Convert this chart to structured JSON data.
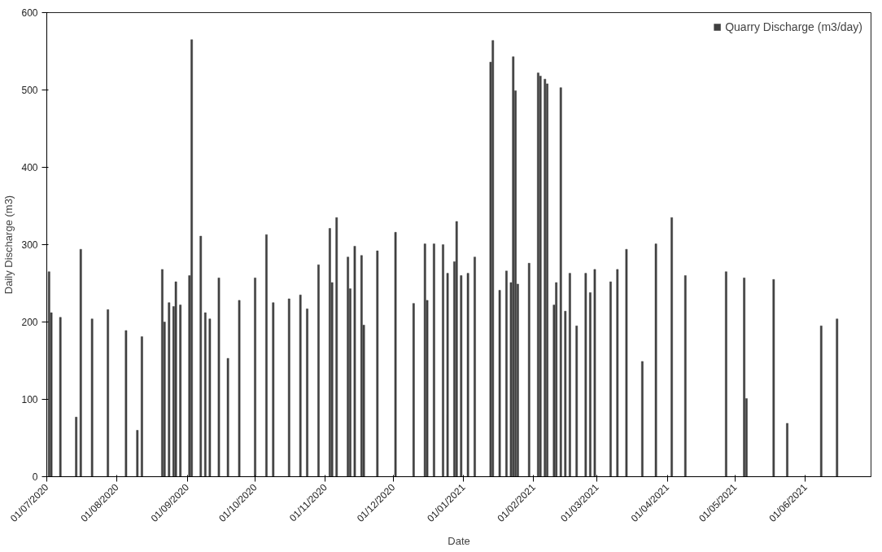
{
  "chart_data": {
    "type": "bar",
    "xlabel": "Date",
    "ylabel": "Daily Discharge (m3)",
    "x": [
      "2020-07-02",
      "2020-07-03",
      "2020-07-07",
      "2020-07-14",
      "2020-07-16",
      "2020-07-21",
      "2020-07-28",
      "2020-08-05",
      "2020-08-10",
      "2020-08-12",
      "2020-08-21",
      "2020-08-22",
      "2020-08-24",
      "2020-08-26",
      "2020-08-27",
      "2020-08-29",
      "2020-09-02",
      "2020-09-03",
      "2020-09-07",
      "2020-09-09",
      "2020-09-11",
      "2020-09-15",
      "2020-09-19",
      "2020-09-24",
      "2020-10-01",
      "2020-10-06",
      "2020-10-09",
      "2020-10-16",
      "2020-10-21",
      "2020-10-24",
      "2020-10-29",
      "2020-11-03",
      "2020-11-04",
      "2020-11-06",
      "2020-11-11",
      "2020-11-12",
      "2020-11-14",
      "2020-11-17",
      "2020-11-18",
      "2020-11-24",
      "2020-12-02",
      "2020-12-10",
      "2020-12-15",
      "2020-12-16",
      "2020-12-19",
      "2020-12-23",
      "2020-12-25",
      "2020-12-28",
      "2020-12-29",
      "2020-12-31",
      "2021-01-03",
      "2021-01-06",
      "2021-01-13",
      "2021-01-14",
      "2021-01-17",
      "2021-01-20",
      "2021-01-22",
      "2021-01-23",
      "2021-01-24",
      "2021-01-25",
      "2021-01-30",
      "2021-02-03",
      "2021-02-04",
      "2021-02-06",
      "2021-02-07",
      "2021-02-10",
      "2021-02-11",
      "2021-02-13",
      "2021-02-15",
      "2021-02-17",
      "2021-02-20",
      "2021-02-24",
      "2021-02-26",
      "2021-02-28",
      "2021-03-07",
      "2021-03-10",
      "2021-03-14",
      "2021-03-21",
      "2021-03-27",
      "2021-04-03",
      "2021-04-09",
      "2021-04-27",
      "2021-05-05",
      "2021-05-06",
      "2021-05-18",
      "2021-05-24",
      "2021-06-08",
      "2021-06-15"
    ],
    "series": [
      {
        "name": "Quarry Discharge (m3/day)",
        "color": "#404040",
        "values": [
          265,
          212,
          206,
          77,
          294,
          204,
          216,
          189,
          60,
          181,
          268,
          200,
          225,
          220,
          252,
          222,
          260,
          565,
          311,
          212,
          204,
          257,
          153,
          228,
          257,
          313,
          225,
          230,
          235,
          217,
          274,
          321,
          251,
          335,
          284,
          243,
          298,
          286,
          196,
          292,
          316,
          224,
          301,
          228,
          301,
          300,
          263,
          278,
          330,
          260,
          263,
          284,
          536,
          564,
          241,
          266,
          251,
          543,
          499,
          249,
          276,
          522,
          518,
          514,
          508,
          222,
          251,
          503,
          214,
          263,
          195,
          263,
          238,
          268,
          252,
          268,
          294,
          149,
          301,
          335,
          260,
          265,
          257,
          101,
          255,
          69,
          195,
          204
        ]
      }
    ],
    "xlim": [
      "2020-07-01",
      "2021-06-30"
    ],
    "xticks": [
      {
        "value": "2020-07-01",
        "label": "01/07/2020"
      },
      {
        "value": "2020-08-01",
        "label": "01/08/2020"
      },
      {
        "value": "2020-09-01",
        "label": "01/09/2020"
      },
      {
        "value": "2020-10-01",
        "label": "01/10/2020"
      },
      {
        "value": "2020-11-01",
        "label": "01/11/2020"
      },
      {
        "value": "2020-12-01",
        "label": "01/12/2020"
      },
      {
        "value": "2021-01-01",
        "label": "01/01/2021"
      },
      {
        "value": "2021-02-01",
        "label": "01/02/2021"
      },
      {
        "value": "2021-03-01",
        "label": "01/03/2021"
      },
      {
        "value": "2021-04-01",
        "label": "01/04/2021"
      },
      {
        "value": "2021-05-01",
        "label": "01/05/2021"
      },
      {
        "value": "2021-06-01",
        "label": "01/06/2021"
      }
    ],
    "ylim": [
      0,
      600
    ],
    "yticks": [
      0,
      100,
      200,
      300,
      400,
      500,
      600
    ],
    "grid": false,
    "legend": "top right"
  }
}
